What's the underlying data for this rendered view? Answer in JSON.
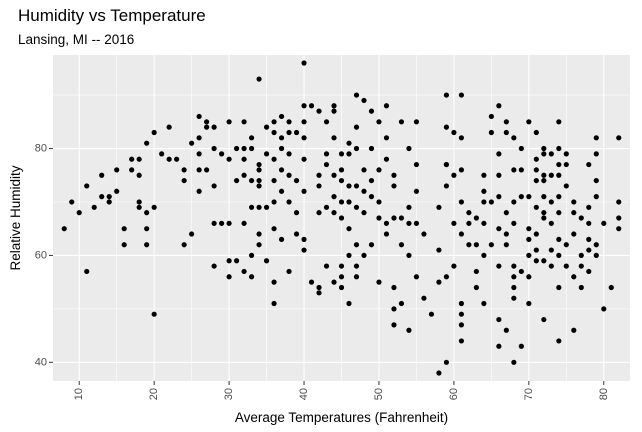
{
  "chart_data": {
    "type": "scatter",
    "title": "Humidity vs Temperature",
    "subtitle": "Lansing, MI -- 2016",
    "xlabel": "Average Temperatures (Fahrenheit)",
    "ylabel": "Relative Humidity",
    "xlim": [
      6.5,
      83.5
    ],
    "ylim": [
      36.5,
      97.5
    ],
    "xticks": [
      10,
      20,
      30,
      40,
      50,
      60,
      70,
      80
    ],
    "yticks": [
      40,
      60,
      80
    ],
    "grid": true,
    "panel_background": "#ebebeb",
    "point_color": "#000000",
    "points": [
      [
        8,
        65
      ],
      [
        9,
        70
      ],
      [
        10,
        68
      ],
      [
        11,
        57
      ],
      [
        11,
        73
      ],
      [
        12,
        69
      ],
      [
        13,
        71
      ],
      [
        13,
        75
      ],
      [
        14,
        70
      ],
      [
        14,
        71
      ],
      [
        15,
        72
      ],
      [
        15,
        76
      ],
      [
        16,
        65
      ],
      [
        16,
        62
      ],
      [
        17,
        78
      ],
      [
        17,
        76
      ],
      [
        18,
        78
      ],
      [
        18,
        75
      ],
      [
        18,
        70
      ],
      [
        18,
        69
      ],
      [
        19,
        68
      ],
      [
        19,
        65
      ],
      [
        19,
        62
      ],
      [
        19,
        81
      ],
      [
        20,
        83
      ],
      [
        20,
        69
      ],
      [
        20,
        49
      ],
      [
        21,
        79
      ],
      [
        22,
        84
      ],
      [
        22,
        78
      ],
      [
        23,
        78
      ],
      [
        24,
        76
      ],
      [
        24,
        74
      ],
      [
        24,
        62
      ],
      [
        25,
        64
      ],
      [
        25,
        81
      ],
      [
        26,
        86
      ],
      [
        26,
        82
      ],
      [
        26,
        79
      ],
      [
        26,
        76
      ],
      [
        26,
        72
      ],
      [
        27,
        85
      ],
      [
        27,
        84
      ],
      [
        27,
        76
      ],
      [
        28,
        84
      ],
      [
        28,
        80
      ],
      [
        28,
        73
      ],
      [
        28,
        66
      ],
      [
        28,
        58
      ],
      [
        29,
        79
      ],
      [
        29,
        66
      ],
      [
        30,
        85
      ],
      [
        30,
        78
      ],
      [
        30,
        66
      ],
      [
        30,
        59
      ],
      [
        30,
        56
      ],
      [
        31,
        80
      ],
      [
        31,
        74
      ],
      [
        31,
        59
      ],
      [
        32,
        85
      ],
      [
        32,
        80
      ],
      [
        32,
        78
      ],
      [
        32,
        75
      ],
      [
        32,
        66
      ],
      [
        32,
        57
      ],
      [
        33,
        82
      ],
      [
        33,
        80
      ],
      [
        33,
        74
      ],
      [
        33,
        69
      ],
      [
        33,
        60
      ],
      [
        33,
        56
      ],
      [
        34,
        93
      ],
      [
        34,
        77
      ],
      [
        34,
        76
      ],
      [
        34,
        74
      ],
      [
        34,
        73
      ],
      [
        34,
        69
      ],
      [
        34,
        64
      ],
      [
        34,
        62
      ],
      [
        35,
        84
      ],
      [
        35,
        79
      ],
      [
        35,
        69
      ],
      [
        35,
        59
      ],
      [
        36,
        85
      ],
      [
        36,
        83
      ],
      [
        36,
        78
      ],
      [
        36,
        74
      ],
      [
        36,
        70
      ],
      [
        36,
        65
      ],
      [
        36,
        55
      ],
      [
        36,
        51
      ],
      [
        37,
        86
      ],
      [
        37,
        82
      ],
      [
        37,
        80
      ],
      [
        37,
        76
      ],
      [
        37,
        72
      ],
      [
        37,
        63
      ],
      [
        38,
        85
      ],
      [
        38,
        83
      ],
      [
        38,
        79
      ],
      [
        38,
        75
      ],
      [
        38,
        70
      ],
      [
        38,
        57
      ],
      [
        39,
        83
      ],
      [
        39,
        74
      ],
      [
        39,
        68
      ],
      [
        39,
        64
      ],
      [
        40,
        96
      ],
      [
        40,
        88
      ],
      [
        40,
        85
      ],
      [
        40,
        82
      ],
      [
        40,
        78
      ],
      [
        40,
        72
      ],
      [
        40,
        63
      ],
      [
        40,
        61
      ],
      [
        41,
        88
      ],
      [
        41,
        55
      ],
      [
        42,
        87
      ],
      [
        42,
        75
      ],
      [
        42,
        73
      ],
      [
        42,
        68
      ],
      [
        42,
        54
      ],
      [
        42,
        53
      ],
      [
        43,
        85
      ],
      [
        43,
        79
      ],
      [
        43,
        77
      ],
      [
        43,
        69
      ],
      [
        43,
        58
      ],
      [
        44,
        88
      ],
      [
        44,
        87
      ],
      [
        44,
        82
      ],
      [
        44,
        75
      ],
      [
        44,
        71
      ],
      [
        44,
        68
      ],
      [
        44,
        55
      ],
      [
        45,
        79
      ],
      [
        45,
        76
      ],
      [
        45,
        74
      ],
      [
        45,
        70
      ],
      [
        45,
        67
      ],
      [
        45,
        58
      ],
      [
        45,
        56
      ],
      [
        45,
        54
      ],
      [
        46,
        81
      ],
      [
        46,
        79
      ],
      [
        46,
        73
      ],
      [
        46,
        70
      ],
      [
        46,
        65
      ],
      [
        46,
        60
      ],
      [
        46,
        51
      ],
      [
        47,
        90
      ],
      [
        47,
        84
      ],
      [
        47,
        80
      ],
      [
        47,
        73
      ],
      [
        47,
        69
      ],
      [
        47,
        62
      ],
      [
        47,
        58
      ],
      [
        47,
        56
      ],
      [
        48,
        89
      ],
      [
        48,
        76
      ],
      [
        48,
        72
      ],
      [
        48,
        68
      ],
      [
        48,
        60
      ],
      [
        49,
        87
      ],
      [
        49,
        80
      ],
      [
        49,
        74
      ],
      [
        49,
        71
      ],
      [
        49,
        62
      ],
      [
        50,
        85
      ],
      [
        50,
        76
      ],
      [
        50,
        70
      ],
      [
        50,
        67
      ],
      [
        50,
        55
      ],
      [
        51,
        88
      ],
      [
        51,
        82
      ],
      [
        51,
        78
      ],
      [
        51,
        66
      ],
      [
        51,
        64
      ],
      [
        52,
        75
      ],
      [
        52,
        73
      ],
      [
        52,
        67
      ],
      [
        52,
        54
      ],
      [
        52,
        50
      ],
      [
        52,
        47
      ],
      [
        53,
        85
      ],
      [
        53,
        67
      ],
      [
        53,
        62
      ],
      [
        53,
        51
      ],
      [
        54,
        80
      ],
      [
        54,
        69
      ],
      [
        54,
        66
      ],
      [
        54,
        60
      ],
      [
        54,
        46
      ],
      [
        55,
        85
      ],
      [
        55,
        77
      ],
      [
        55,
        72
      ],
      [
        55,
        66
      ],
      [
        55,
        56
      ],
      [
        56,
        64
      ],
      [
        56,
        52
      ],
      [
        57,
        49
      ],
      [
        58,
        38
      ],
      [
        58,
        69
      ],
      [
        58,
        61
      ],
      [
        58,
        55
      ],
      [
        59,
        77
      ],
      [
        59,
        40
      ],
      [
        59,
        90
      ],
      [
        59,
        84
      ],
      [
        59,
        77
      ],
      [
        59,
        73
      ],
      [
        59,
        56
      ],
      [
        60,
        83
      ],
      [
        60,
        75
      ],
      [
        60,
        66
      ],
      [
        60,
        58
      ],
      [
        61,
        90
      ],
      [
        61,
        82
      ],
      [
        61,
        76
      ],
      [
        61,
        70
      ],
      [
        61,
        64
      ],
      [
        61,
        51
      ],
      [
        61,
        49
      ],
      [
        61,
        47
      ],
      [
        61,
        44
      ],
      [
        62,
        68
      ],
      [
        62,
        66
      ],
      [
        62,
        62
      ],
      [
        63,
        67
      ],
      [
        63,
        62
      ],
      [
        63,
        57
      ],
      [
        63,
        54
      ],
      [
        64,
        75
      ],
      [
        64,
        72
      ],
      [
        64,
        70
      ],
      [
        64,
        66
      ],
      [
        64,
        60
      ],
      [
        64,
        51
      ],
      [
        65,
        86
      ],
      [
        65,
        83
      ],
      [
        65,
        70
      ],
      [
        65,
        62
      ],
      [
        66,
        88
      ],
      [
        66,
        79
      ],
      [
        66,
        75
      ],
      [
        66,
        71
      ],
      [
        66,
        65
      ],
      [
        66,
        58
      ],
      [
        66,
        48
      ],
      [
        66,
        43
      ],
      [
        67,
        85
      ],
      [
        67,
        83
      ],
      [
        67,
        68
      ],
      [
        67,
        64
      ],
      [
        67,
        62
      ],
      [
        67,
        46
      ],
      [
        68,
        82
      ],
      [
        68,
        76
      ],
      [
        68,
        70
      ],
      [
        68,
        66
      ],
      [
        68,
        58
      ],
      [
        68,
        56
      ],
      [
        68,
        54
      ],
      [
        68,
        52
      ],
      [
        68,
        40
      ],
      [
        69,
        80
      ],
      [
        69,
        76
      ],
      [
        69,
        71
      ],
      [
        69,
        57
      ],
      [
        69,
        43
      ],
      [
        70,
        85
      ],
      [
        70,
        71
      ],
      [
        70,
        65
      ],
      [
        70,
        63
      ],
      [
        70,
        60
      ],
      [
        70,
        56
      ],
      [
        70,
        51
      ],
      [
        71,
        83
      ],
      [
        71,
        78
      ],
      [
        71,
        76
      ],
      [
        71,
        74
      ],
      [
        71,
        69
      ],
      [
        71,
        64
      ],
      [
        71,
        61
      ],
      [
        71,
        59
      ],
      [
        72,
        80
      ],
      [
        72,
        79
      ],
      [
        72,
        75
      ],
      [
        72,
        74
      ],
      [
        72,
        71
      ],
      [
        72,
        68
      ],
      [
        72,
        67
      ],
      [
        72,
        59
      ],
      [
        72,
        48
      ],
      [
        73,
        79
      ],
      [
        73,
        75
      ],
      [
        73,
        70
      ],
      [
        73,
        66
      ],
      [
        73,
        61
      ],
      [
        73,
        58
      ],
      [
        74,
        85
      ],
      [
        74,
        80
      ],
      [
        74,
        77
      ],
      [
        74,
        75
      ],
      [
        74,
        71
      ],
      [
        74,
        68
      ],
      [
        74,
        63
      ],
      [
        74,
        60
      ],
      [
        74,
        54
      ],
      [
        74,
        44
      ],
      [
        75,
        79
      ],
      [
        75,
        77
      ],
      [
        75,
        73
      ],
      [
        75,
        62
      ],
      [
        75,
        58
      ],
      [
        76,
        70
      ],
      [
        76,
        68
      ],
      [
        76,
        64
      ],
      [
        76,
        56
      ],
      [
        76,
        46
      ],
      [
        77,
        67
      ],
      [
        77,
        60
      ],
      [
        77,
        58
      ],
      [
        77,
        54
      ],
      [
        78,
        77
      ],
      [
        78,
        69
      ],
      [
        78,
        66
      ],
      [
        78,
        63
      ],
      [
        78,
        61
      ],
      [
        78,
        57
      ],
      [
        79,
        82
      ],
      [
        79,
        79
      ],
      [
        79,
        74
      ],
      [
        79,
        71
      ],
      [
        79,
        62
      ],
      [
        79,
        60
      ],
      [
        80,
        66
      ],
      [
        80,
        50
      ],
      [
        81,
        54
      ],
      [
        82,
        82
      ],
      [
        82,
        70
      ],
      [
        82,
        67
      ],
      [
        82,
        65
      ]
    ]
  }
}
